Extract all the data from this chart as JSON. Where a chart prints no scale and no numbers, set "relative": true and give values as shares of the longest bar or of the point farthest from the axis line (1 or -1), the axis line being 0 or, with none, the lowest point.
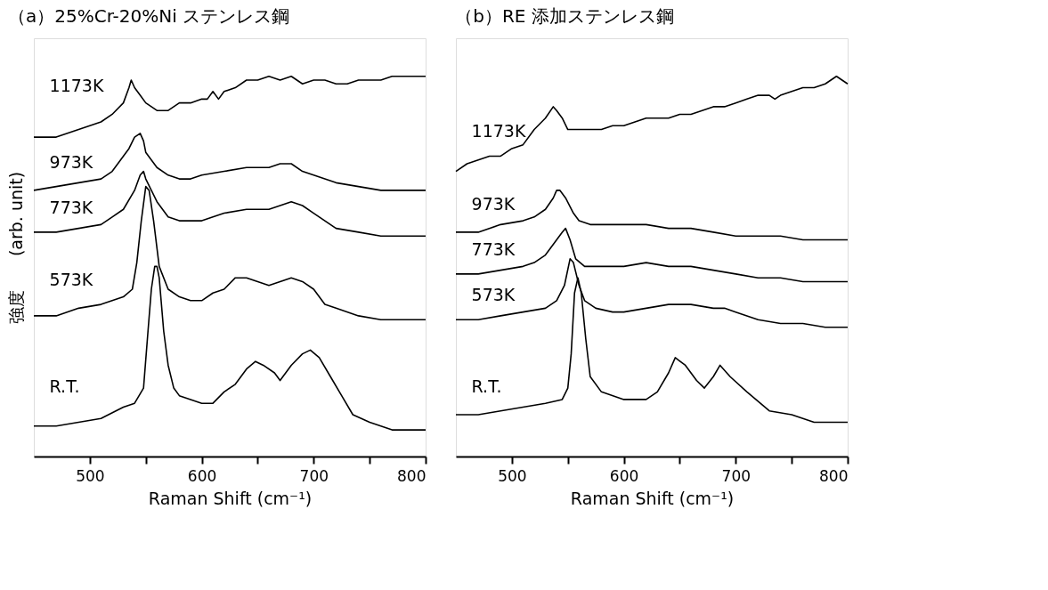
{
  "chart_data": [
    {
      "type": "line",
      "title": "（a）25%Cr-20%Ni ステンレス鋼",
      "xlabel": "Raman Shift (cm⁻¹)",
      "ylabel": "強度　　(arb. unit)",
      "relative": true,
      "xlim": [
        450,
        800
      ],
      "xticks": [
        500,
        {
          "value": 550,
          "label": null
        },
        600,
        {
          "value": 650,
          "label": null
        },
        700,
        {
          "value": 750,
          "label": null
        },
        800
      ],
      "grid": false,
      "legend": false,
      "marker": "none",
      "line_style": "solid",
      "series": [
        {
          "name": "1173K",
          "color": "#000000",
          "x": [
            450,
            470,
            490,
            510,
            520,
            530,
            535,
            537,
            540,
            545,
            550,
            560,
            570,
            580,
            590,
            600,
            605,
            610,
            615,
            620,
            630,
            640,
            650,
            660,
            670,
            680,
            690,
            700,
            710,
            720,
            730,
            740,
            750,
            760,
            770,
            780,
            790,
            800
          ],
          "values": [
            0.84,
            0.84,
            0.86,
            0.88,
            0.9,
            0.93,
            0.97,
            0.99,
            0.97,
            0.95,
            0.93,
            0.91,
            0.91,
            0.93,
            0.93,
            0.94,
            0.94,
            0.96,
            0.94,
            0.96,
            0.97,
            0.99,
            0.99,
            1.0,
            0.99,
            1.0,
            0.98,
            0.99,
            0.99,
            0.98,
            0.98,
            0.99,
            0.99,
            0.99,
            1.0,
            1.0,
            1.0,
            1.0
          ]
        },
        {
          "name": "973K",
          "color": "#000000",
          "x": [
            450,
            470,
            490,
            510,
            520,
            530,
            535,
            540,
            545,
            548,
            550,
            555,
            560,
            570,
            580,
            590,
            600,
            620,
            640,
            660,
            670,
            680,
            690,
            700,
            720,
            740,
            760,
            780,
            800
          ],
          "values": [
            0.7,
            0.71,
            0.72,
            0.73,
            0.75,
            0.79,
            0.81,
            0.84,
            0.85,
            0.83,
            0.8,
            0.78,
            0.76,
            0.74,
            0.73,
            0.73,
            0.74,
            0.75,
            0.76,
            0.76,
            0.77,
            0.77,
            0.75,
            0.74,
            0.72,
            0.71,
            0.7,
            0.7,
            0.7
          ]
        },
        {
          "name": "773K",
          "color": "#000000",
          "x": [
            450,
            470,
            490,
            510,
            520,
            530,
            540,
            545,
            548,
            550,
            555,
            560,
            570,
            580,
            590,
            600,
            620,
            640,
            660,
            670,
            680,
            690,
            700,
            720,
            740,
            760,
            780,
            800
          ],
          "values": [
            0.59,
            0.59,
            0.6,
            0.61,
            0.63,
            0.65,
            0.7,
            0.74,
            0.75,
            0.73,
            0.7,
            0.67,
            0.63,
            0.62,
            0.62,
            0.62,
            0.64,
            0.65,
            0.65,
            0.66,
            0.67,
            0.66,
            0.64,
            0.6,
            0.59,
            0.58,
            0.58,
            0.58
          ]
        },
        {
          "name": "573K",
          "color": "#000000",
          "x": [
            450,
            470,
            490,
            510,
            530,
            538,
            542,
            546,
            550,
            553,
            557,
            562,
            570,
            580,
            590,
            600,
            610,
            620,
            630,
            640,
            650,
            660,
            670,
            680,
            690,
            700,
            710,
            720,
            740,
            760,
            780,
            800
          ],
          "values": [
            0.37,
            0.37,
            0.39,
            0.4,
            0.42,
            0.44,
            0.51,
            0.62,
            0.71,
            0.7,
            0.62,
            0.5,
            0.44,
            0.42,
            0.41,
            0.41,
            0.43,
            0.44,
            0.47,
            0.47,
            0.46,
            0.45,
            0.46,
            0.47,
            0.46,
            0.44,
            0.4,
            0.39,
            0.37,
            0.36,
            0.36,
            0.36
          ]
        },
        {
          "name": "R.T.",
          "color": "#000000",
          "x": [
            450,
            470,
            490,
            510,
            530,
            540,
            548,
            552,
            555,
            558,
            560,
            562,
            566,
            570,
            575,
            580,
            590,
            600,
            610,
            620,
            630,
            640,
            648,
            655,
            665,
            670,
            680,
            690,
            697,
            705,
            715,
            725,
            735,
            750,
            770,
            800
          ],
          "values": [
            0.08,
            0.08,
            0.09,
            0.1,
            0.13,
            0.14,
            0.18,
            0.33,
            0.44,
            0.5,
            0.5,
            0.47,
            0.33,
            0.24,
            0.18,
            0.16,
            0.15,
            0.14,
            0.14,
            0.17,
            0.19,
            0.23,
            0.25,
            0.24,
            0.22,
            0.2,
            0.24,
            0.27,
            0.28,
            0.26,
            0.21,
            0.16,
            0.11,
            0.09,
            0.07,
            0.07
          ]
        }
      ]
    },
    {
      "type": "line",
      "title": "（b）RE 添加ステンレス鋼",
      "xlabel": "Raman Shift (cm⁻¹)",
      "relative": true,
      "xlim": [
        450,
        800
      ],
      "xticks": [
        500,
        {
          "value": 550,
          "label": null
        },
        600,
        {
          "value": 650,
          "label": null
        },
        700,
        {
          "value": 750,
          "label": null
        },
        800
      ],
      "grid": false,
      "legend": false,
      "marker": "none",
      "line_style": "solid",
      "series": [
        {
          "name": "1173K",
          "color": "#000000",
          "x": [
            450,
            460,
            470,
            480,
            490,
            500,
            510,
            520,
            530,
            537,
            540,
            545,
            550,
            560,
            570,
            580,
            590,
            600,
            610,
            620,
            630,
            640,
            650,
            660,
            670,
            680,
            690,
            700,
            710,
            720,
            730,
            735,
            740,
            750,
            760,
            770,
            780,
            790,
            800
          ],
          "values": [
            0.75,
            0.77,
            0.78,
            0.79,
            0.79,
            0.81,
            0.82,
            0.86,
            0.89,
            0.92,
            0.91,
            0.89,
            0.86,
            0.86,
            0.86,
            0.86,
            0.87,
            0.87,
            0.88,
            0.89,
            0.89,
            0.89,
            0.9,
            0.9,
            0.91,
            0.92,
            0.92,
            0.93,
            0.94,
            0.95,
            0.95,
            0.94,
            0.95,
            0.96,
            0.97,
            0.97,
            0.98,
            1.0,
            0.98
          ]
        },
        {
          "name": "973K",
          "color": "#000000",
          "x": [
            450,
            470,
            490,
            510,
            520,
            530,
            537,
            540,
            543,
            548,
            555,
            560,
            570,
            580,
            600,
            620,
            640,
            660,
            680,
            700,
            720,
            740,
            760,
            780,
            800
          ],
          "values": [
            0.59,
            0.59,
            0.61,
            0.62,
            0.63,
            0.65,
            0.68,
            0.7,
            0.7,
            0.68,
            0.64,
            0.62,
            0.61,
            0.61,
            0.61,
            0.61,
            0.6,
            0.6,
            0.59,
            0.58,
            0.58,
            0.58,
            0.57,
            0.57,
            0.57
          ]
        },
        {
          "name": "773K",
          "color": "#000000",
          "x": [
            450,
            470,
            490,
            510,
            520,
            530,
            540,
            545,
            548,
            552,
            557,
            565,
            580,
            600,
            620,
            640,
            660,
            680,
            700,
            720,
            740,
            760,
            780,
            800
          ],
          "values": [
            0.48,
            0.48,
            0.49,
            0.5,
            0.51,
            0.53,
            0.57,
            0.59,
            0.6,
            0.57,
            0.52,
            0.5,
            0.5,
            0.5,
            0.51,
            0.5,
            0.5,
            0.49,
            0.48,
            0.47,
            0.47,
            0.46,
            0.46,
            0.46
          ]
        },
        {
          "name": "573K",
          "color": "#000000",
          "x": [
            450,
            470,
            490,
            510,
            530,
            540,
            547,
            552,
            555,
            560,
            565,
            575,
            590,
            600,
            620,
            640,
            660,
            680,
            690,
            700,
            720,
            740,
            760,
            780,
            800
          ],
          "values": [
            0.36,
            0.36,
            0.37,
            0.38,
            0.39,
            0.41,
            0.45,
            0.52,
            0.51,
            0.45,
            0.41,
            0.39,
            0.38,
            0.38,
            0.39,
            0.4,
            0.4,
            0.39,
            0.39,
            0.38,
            0.36,
            0.35,
            0.35,
            0.34,
            0.34
          ]
        },
        {
          "name": "R.T.",
          "color": "#000000",
          "x": [
            450,
            470,
            490,
            510,
            530,
            545,
            550,
            553,
            556,
            559,
            562,
            566,
            570,
            580,
            600,
            620,
            630,
            640,
            646,
            655,
            665,
            672,
            680,
            686,
            695,
            710,
            730,
            750,
            770,
            790,
            800
          ],
          "values": [
            0.11,
            0.11,
            0.12,
            0.13,
            0.14,
            0.15,
            0.18,
            0.27,
            0.43,
            0.47,
            0.43,
            0.31,
            0.21,
            0.17,
            0.15,
            0.15,
            0.17,
            0.22,
            0.26,
            0.24,
            0.2,
            0.18,
            0.21,
            0.24,
            0.21,
            0.17,
            0.12,
            0.11,
            0.09,
            0.09,
            0.09
          ]
        }
      ]
    }
  ]
}
